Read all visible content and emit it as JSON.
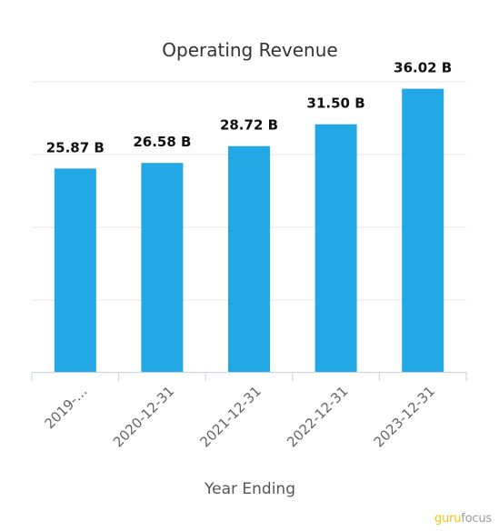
{
  "brand": {
    "part1": "guru",
    "part2": "focus"
  },
  "chart_data": {
    "type": "bar",
    "title": "Operating Revenue",
    "xlabel": "Year Ending",
    "ylabel": "",
    "categories": [
      "2019-…",
      "2020-12-31",
      "2021-12-31",
      "2022-12-31",
      "2023-12-31"
    ],
    "values": [
      25.87,
      26.58,
      28.72,
      31.5,
      36.02
    ],
    "value_labels": [
      "25.87 B",
      "26.58 B",
      "28.72 B",
      "31.50 B",
      "36.02 B"
    ],
    "ylim": [
      0,
      36.9
    ],
    "grid": true,
    "bar_color": "#22a8e4",
    "grid_color": "#e6e6e6",
    "axis_color": "#c5d3e8"
  }
}
